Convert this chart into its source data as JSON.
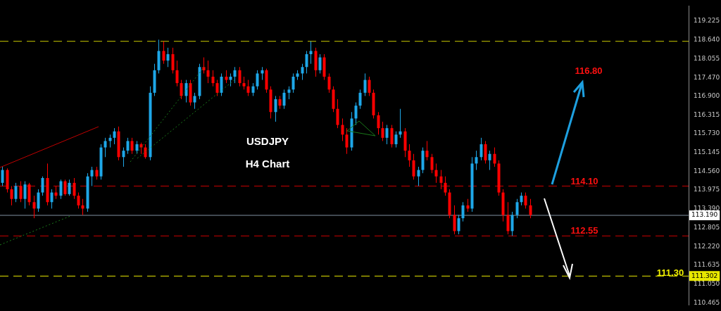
{
  "chart_data": {
    "type": "candlestick",
    "categories": [
      null,
      null,
      null,
      null,
      null,
      null,
      null,
      null,
      null,
      null,
      null,
      null,
      null,
      null,
      null,
      null,
      null,
      null,
      null,
      null,
      null,
      null,
      null,
      null,
      null,
      null,
      null,
      null,
      null,
      null,
      null,
      null,
      null,
      null,
      null,
      null,
      null,
      null,
      null,
      null,
      null,
      null,
      null,
      null,
      null,
      null,
      null,
      null,
      null,
      null,
      null,
      null,
      null,
      null,
      null,
      null,
      null,
      null,
      null,
      null,
      null,
      null,
      null,
      null,
      null,
      null,
      null,
      null,
      null,
      null,
      null,
      null,
      null,
      null,
      null,
      null,
      null,
      null,
      null,
      null,
      null,
      null,
      null,
      null,
      null,
      null,
      null,
      null,
      null,
      null,
      null,
      null,
      null,
      null,
      null,
      null,
      null,
      null,
      null,
      null,
      null,
      null,
      null,
      null,
      null,
      null,
      null,
      null,
      null,
      null,
      null,
      null,
      null,
      null,
      null,
      null,
      null,
      null,
      null,
      null,
      null,
      null,
      null,
      null,
      null,
      null,
      null,
      null,
      null,
      null,
      null,
      null,
      null,
      null,
      null,
      null,
      null,
      null,
      null,
      null,
      null,
      null,
      null,
      null,
      null,
      null,
      null,
      null,
      null,
      null,
      null,
      null,
      null,
      null
    ],
    "ohlc": [
      [
        114.2,
        114.7,
        114.1,
        114.6
      ],
      [
        114.6,
        114.65,
        113.9,
        114.0
      ],
      [
        114.0,
        114.1,
        113.5,
        113.7
      ],
      [
        113.7,
        114.2,
        113.6,
        114.1
      ],
      [
        114.1,
        114.25,
        113.6,
        113.7
      ],
      [
        113.7,
        114.25,
        113.4,
        114.15
      ],
      [
        114.15,
        114.2,
        113.5,
        113.6
      ],
      [
        113.6,
        113.8,
        113.1,
        113.4
      ],
      [
        113.4,
        114.0,
        113.3,
        113.9
      ],
      [
        113.9,
        114.4,
        113.8,
        114.35
      ],
      [
        114.35,
        114.8,
        113.5,
        113.6
      ],
      [
        113.6,
        114.0,
        113.4,
        113.9
      ],
      [
        113.9,
        114.1,
        113.7,
        113.8
      ],
      [
        113.8,
        114.3,
        113.7,
        114.25
      ],
      [
        114.25,
        114.3,
        113.8,
        113.85
      ],
      [
        113.85,
        114.3,
        113.8,
        114.2
      ],
      [
        114.2,
        114.35,
        113.7,
        113.8
      ],
      [
        113.8,
        113.9,
        113.4,
        113.5
      ],
      [
        113.5,
        113.7,
        113.2,
        113.4
      ],
      [
        113.4,
        114.5,
        113.3,
        114.4
      ],
      [
        114.4,
        114.7,
        114.1,
        114.6
      ],
      [
        114.6,
        114.7,
        114.3,
        114.4
      ],
      [
        114.4,
        115.4,
        114.3,
        115.3
      ],
      [
        115.3,
        115.6,
        115.0,
        115.5
      ],
      [
        115.5,
        115.7,
        115.3,
        115.6
      ],
      [
        115.6,
        115.9,
        115.4,
        115.8
      ],
      [
        115.8,
        115.95,
        114.9,
        115.0
      ],
      [
        115.0,
        115.3,
        114.7,
        115.2
      ],
      [
        115.2,
        115.6,
        115.1,
        115.5
      ],
      [
        115.5,
        115.6,
        115.1,
        115.2
      ],
      [
        115.2,
        115.5,
        115.1,
        115.4
      ],
      [
        115.4,
        115.45,
        115.1,
        115.3
      ],
      [
        115.3,
        115.4,
        114.95,
        115.0
      ],
      [
        115.0,
        117.2,
        114.9,
        117.0
      ],
      [
        117.0,
        117.9,
        116.9,
        117.7
      ],
      [
        117.7,
        118.65,
        117.6,
        118.3
      ],
      [
        118.3,
        118.6,
        117.9,
        118.0
      ],
      [
        118.0,
        118.4,
        117.8,
        118.2
      ],
      [
        118.2,
        118.4,
        117.6,
        117.7
      ],
      [
        117.7,
        118.0,
        117.2,
        117.3
      ],
      [
        117.3,
        117.4,
        116.8,
        116.9
      ],
      [
        116.9,
        117.4,
        116.7,
        117.3
      ],
      [
        117.3,
        117.4,
        116.6,
        116.7
      ],
      [
        116.7,
        117.0,
        116.5,
        116.9
      ],
      [
        116.9,
        117.9,
        116.8,
        117.8
      ],
      [
        117.8,
        118.1,
        117.6,
        117.7
      ],
      [
        117.7,
        118.0,
        117.3,
        117.5
      ],
      [
        117.5,
        117.7,
        117.2,
        117.3
      ],
      [
        117.3,
        117.4,
        116.9,
        117.0
      ],
      [
        117.0,
        117.6,
        116.9,
        117.5
      ],
      [
        117.5,
        117.7,
        117.3,
        117.4
      ],
      [
        117.4,
        117.6,
        117.2,
        117.5
      ],
      [
        117.5,
        117.8,
        117.3,
        117.7
      ],
      [
        117.7,
        117.8,
        117.2,
        117.3
      ],
      [
        117.3,
        117.5,
        117.1,
        117.2
      ],
      [
        117.2,
        117.4,
        116.9,
        117.0
      ],
      [
        117.0,
        117.3,
        116.9,
        117.2
      ],
      [
        117.2,
        117.7,
        117.1,
        117.6
      ],
      [
        117.6,
        117.8,
        117.4,
        117.7
      ],
      [
        117.7,
        117.75,
        117.0,
        117.1
      ],
      [
        117.1,
        117.2,
        116.2,
        116.4
      ],
      [
        116.4,
        116.9,
        116.1,
        116.8
      ],
      [
        116.8,
        116.9,
        116.5,
        116.6
      ],
      [
        116.6,
        117.1,
        116.5,
        117.0
      ],
      [
        117.0,
        117.2,
        116.8,
        117.1
      ],
      [
        117.1,
        117.6,
        117.0,
        117.5
      ],
      [
        117.5,
        117.7,
        117.4,
        117.6
      ],
      [
        117.6,
        117.9,
        117.4,
        117.8
      ],
      [
        117.8,
        118.3,
        117.6,
        118.2
      ],
      [
        118.2,
        118.6,
        117.9,
        118.3
      ],
      [
        118.3,
        118.4,
        117.5,
        117.7
      ],
      [
        117.7,
        118.2,
        117.6,
        118.1
      ],
      [
        118.1,
        118.2,
        117.4,
        117.5
      ],
      [
        117.5,
        117.6,
        117.0,
        117.1
      ],
      [
        117.1,
        117.2,
        116.4,
        116.5
      ],
      [
        116.5,
        116.8,
        115.9,
        116.0
      ],
      [
        116.0,
        116.2,
        115.5,
        115.7
      ],
      [
        115.7,
        115.9,
        115.1,
        115.3
      ],
      [
        115.3,
        116.4,
        115.2,
        116.2
      ],
      [
        116.2,
        116.7,
        116.0,
        116.6
      ],
      [
        116.6,
        117.1,
        116.5,
        117.0
      ],
      [
        117.0,
        117.6,
        116.9,
        117.4
      ],
      [
        117.4,
        117.5,
        116.9,
        117.0
      ],
      [
        117.0,
        117.1,
        116.2,
        116.3
      ],
      [
        116.3,
        116.4,
        115.7,
        115.9
      ],
      [
        115.9,
        116.1,
        115.5,
        115.6
      ],
      [
        115.6,
        116.0,
        115.4,
        115.9
      ],
      [
        115.9,
        116.0,
        115.3,
        115.4
      ],
      [
        115.4,
        115.8,
        115.3,
        115.7
      ],
      [
        115.7,
        116.5,
        115.6,
        115.8
      ],
      [
        115.8,
        115.9,
        115.0,
        115.2
      ],
      [
        115.2,
        115.4,
        114.7,
        114.9
      ],
      [
        114.9,
        115.1,
        114.3,
        114.4
      ],
      [
        114.4,
        114.7,
        114.1,
        114.6
      ],
      [
        114.6,
        115.3,
        114.5,
        115.2
      ],
      [
        115.2,
        115.5,
        114.9,
        115.0
      ],
      [
        115.0,
        115.1,
        114.5,
        114.6
      ],
      [
        114.6,
        114.8,
        114.2,
        114.4
      ],
      [
        114.4,
        114.6,
        114.0,
        114.2
      ],
      [
        114.2,
        114.4,
        113.8,
        113.9
      ],
      [
        113.9,
        114.0,
        113.1,
        113.2
      ],
      [
        113.2,
        113.5,
        112.6,
        112.7
      ],
      [
        112.7,
        113.2,
        112.6,
        113.1
      ],
      [
        113.1,
        113.6,
        113.0,
        113.5
      ],
      [
        113.5,
        113.7,
        113.3,
        113.4
      ],
      [
        113.4,
        115.0,
        113.3,
        114.8
      ],
      [
        114.8,
        115.2,
        114.6,
        115.0
      ],
      [
        115.0,
        115.6,
        114.9,
        115.4
      ],
      [
        115.4,
        115.5,
        114.8,
        114.9
      ],
      [
        114.9,
        115.2,
        114.6,
        115.1
      ],
      [
        115.1,
        115.3,
        114.7,
        114.8
      ],
      [
        114.8,
        114.9,
        113.8,
        113.9
      ],
      [
        113.9,
        114.0,
        113.0,
        113.2
      ],
      [
        113.2,
        113.6,
        112.6,
        112.7
      ],
      [
        112.7,
        113.3,
        112.55,
        113.2
      ],
      [
        113.2,
        113.7,
        113.1,
        113.6
      ],
      [
        113.6,
        113.9,
        113.5,
        113.8
      ],
      [
        113.8,
        113.9,
        113.4,
        113.5
      ],
      [
        113.5,
        113.7,
        113.1,
        113.2
      ],
      null,
      null,
      null,
      null,
      null,
      null,
      null,
      null,
      null,
      null,
      null,
      null,
      null,
      null,
      null,
      null,
      null,
      null,
      null,
      null,
      null,
      null,
      null,
      null,
      null,
      null,
      null,
      null,
      null,
      null,
      null,
      null,
      null,
      null,
      null
    ],
    "ylim": [
      110.4,
      119.7
    ],
    "yticks": [
      119.225,
      {
        "value": 118.64,
        "label": "118.640"
      },
      {
        "value": 118.055,
        "label": "118.055"
      },
      {
        "value": 117.47,
        "label": "117.470"
      },
      {
        "value": 116.9,
        "label": "116.900"
      },
      116.315,
      {
        "value": 115.73,
        "label": "115.730"
      },
      115.145,
      {
        "value": 114.56,
        "label": "114.560"
      },
      113.975,
      {
        "value": 113.39,
        "label": "113.390"
      },
      112.805,
      {
        "value": 112.22,
        "label": "112.220"
      },
      111.635,
      {
        "value": 111.05,
        "label": "111.050"
      },
      110.465
    ],
    "tick_labels": "y",
    "grid": false,
    "legend": false,
    "ref_lines": [
      {
        "axis": "y",
        "value": 118.6,
        "color": "#c8c800",
        "line_style": "dashed"
      },
      {
        "axis": "y",
        "value": 114.1,
        "color": "#cc0000",
        "line_style": "dashed"
      },
      {
        "axis": "y",
        "value": 113.19,
        "label": "113.190",
        "color": "#8090a0",
        "line_style": "solid"
      },
      {
        "axis": "y",
        "value": 112.55,
        "color": "#cc0000",
        "line_style": "dashed"
      },
      {
        "axis": "y",
        "value": 111.302,
        "label": "111.302",
        "color": "#e8e800",
        "line_style": "dashed"
      }
    ],
    "annotations": [
      "USDJPY",
      "H4 Chart",
      "116.80",
      "114.10",
      "112.55",
      "111.30"
    ]
  }
}
